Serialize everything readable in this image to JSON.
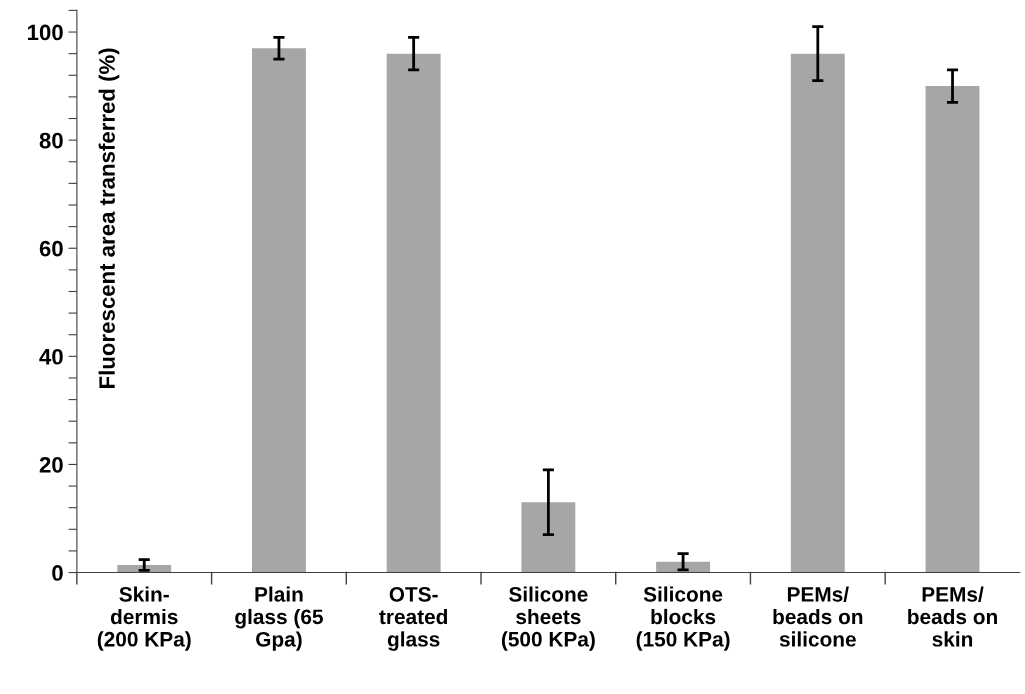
{
  "chart_data": {
    "type": "bar",
    "ylabel": "Fluorescent area transferred (%)",
    "categories": [
      "Skin-\ndermis\n(200 KPa)",
      "Plain\nglass (65\nGpa)",
      "OTS-\ntreated\nglass",
      "Silicone\nsheets\n(500 KPa)",
      "Silicone\nblocks\n(150 KPa)",
      "PEMs/\nbeads on\nsilicone",
      "PEMs/\nbeads on\nskin"
    ],
    "values": [
      1.4,
      97,
      96,
      13,
      2,
      96,
      90
    ],
    "errors": [
      1,
      2,
      3,
      6,
      1.5,
      5,
      3
    ],
    "color": "#a6a6a6",
    "ylim": [
      0,
      104
    ],
    "yticks": [
      0,
      {
        "value": 4,
        "label": null
      },
      {
        "value": 8,
        "label": null
      },
      {
        "value": 12,
        "label": null
      },
      {
        "value": 16,
        "label": null
      },
      20,
      {
        "value": 24,
        "label": null
      },
      {
        "value": 28,
        "label": null
      },
      {
        "value": 32,
        "label": null
      },
      {
        "value": 36,
        "label": null
      },
      40,
      {
        "value": 44,
        "label": null
      },
      {
        "value": 48,
        "label": null
      },
      {
        "value": 52,
        "label": null
      },
      {
        "value": 56,
        "label": null
      },
      60,
      {
        "value": 64,
        "label": null
      },
      {
        "value": 68,
        "label": null
      },
      {
        "value": 72,
        "label": null
      },
      {
        "value": 76,
        "label": null
      },
      80,
      {
        "value": 84,
        "label": null
      },
      {
        "value": 88,
        "label": null
      },
      {
        "value": 92,
        "label": null
      },
      {
        "value": 96,
        "label": null
      },
      100,
      {
        "value": 104,
        "label": null
      }
    ],
    "grid": false,
    "legend": false
  }
}
